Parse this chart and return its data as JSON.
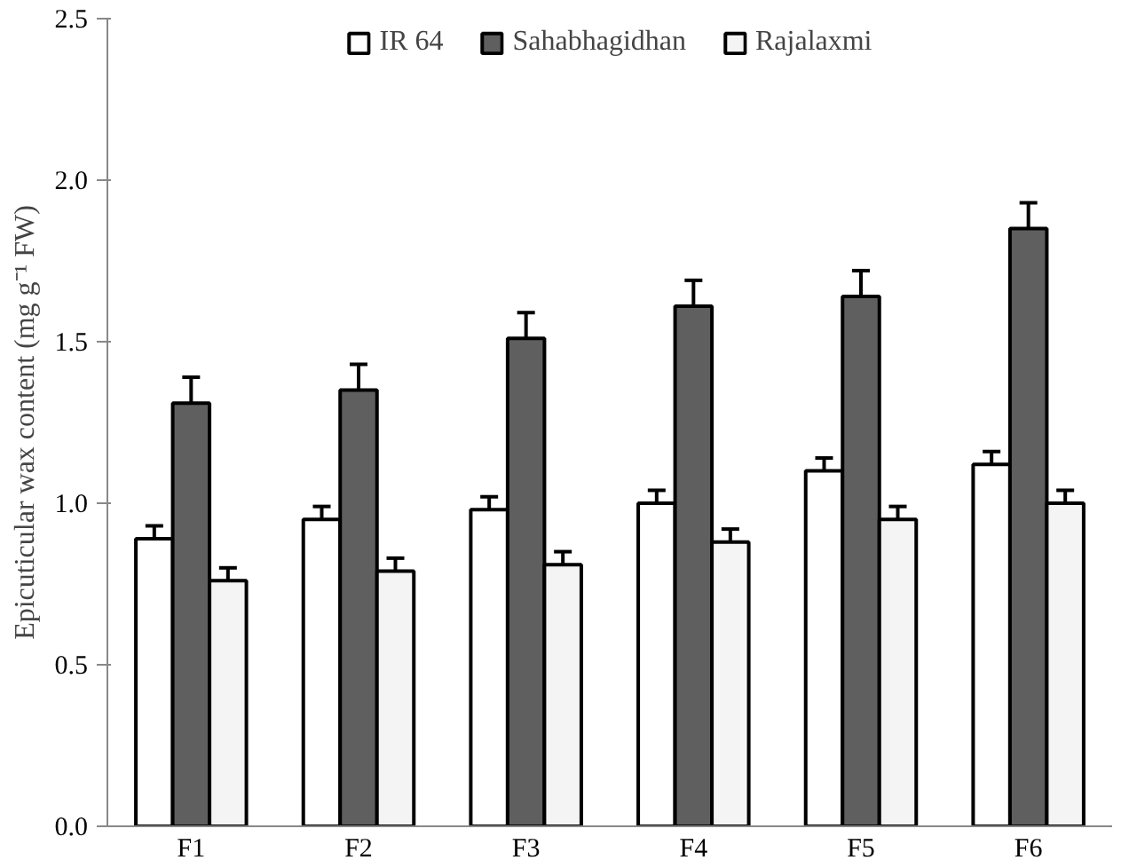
{
  "chart_data": {
    "type": "bar",
    "ylabel": "Epicuticular wax content (mg g⁻¹ FW)",
    "categories": [
      "F1",
      "F2",
      "F3",
      "F4",
      "F5",
      "F6"
    ],
    "series": [
      {
        "name": "IR 64",
        "color": "#ffffff",
        "values": [
          0.89,
          0.95,
          0.98,
          1.0,
          1.1,
          1.12
        ],
        "errors": [
          0.04,
          0.04,
          0.04,
          0.04,
          0.04,
          0.04
        ]
      },
      {
        "name": "Sahabhagidhan",
        "color": "#5f5f5f",
        "values": [
          1.31,
          1.35,
          1.51,
          1.61,
          1.64,
          1.85
        ],
        "errors": [
          0.08,
          0.08,
          0.08,
          0.08,
          0.08,
          0.08
        ]
      },
      {
        "name": "Rajalaxmi",
        "color": "#f4f4f4",
        "values": [
          0.76,
          0.79,
          0.81,
          0.88,
          0.95,
          1.0
        ],
        "errors": [
          0.04,
          0.04,
          0.04,
          0.04,
          0.04,
          0.04
        ]
      }
    ],
    "ylim": [
      0,
      2.5
    ],
    "yticks": [
      {
        "value": 0,
        "label": "0.0"
      },
      0.5,
      {
        "value": 1,
        "label": "1.0"
      },
      1.5,
      {
        "value": 2,
        "label": "2.0"
      },
      2.5
    ],
    "grid": false,
    "legend": "top"
  }
}
